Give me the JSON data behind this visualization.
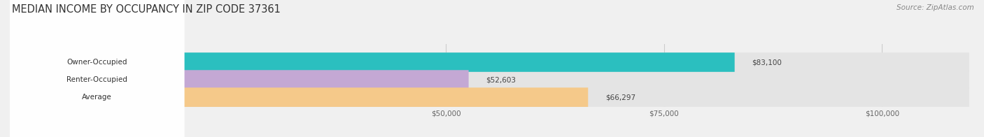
{
  "title": "MEDIAN INCOME BY OCCUPANCY IN ZIP CODE 37361",
  "source": "Source: ZipAtlas.com",
  "categories": [
    "Owner-Occupied",
    "Renter-Occupied",
    "Average"
  ],
  "values": [
    83100,
    52603,
    66297
  ],
  "bar_colors": [
    "#2bbfbf",
    "#c4a8d4",
    "#f5c98a"
  ],
  "track_color": "#e4e4e4",
  "label_color": "#444444",
  "value_labels": [
    "$83,100",
    "$52,603",
    "$66,297"
  ],
  "xmin": 0,
  "xmax": 110000,
  "xticks": [
    50000,
    75000,
    100000
  ],
  "xticklabels": [
    "$50,000",
    "$75,000",
    "$100,000"
  ],
  "title_fontsize": 10.5,
  "bar_height": 0.58,
  "background_color": "#f0f0f0"
}
